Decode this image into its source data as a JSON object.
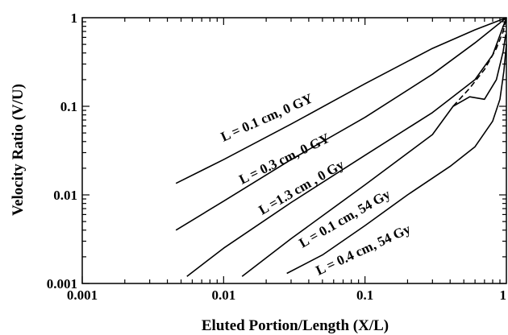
{
  "chart_data": {
    "type": "line",
    "title": "",
    "xlabel": "Eluted Portion/Length (X/L)",
    "ylabel": "Velocity Ratio (V/U)",
    "x_scale": "log",
    "y_scale": "log",
    "xlim": [
      0.001,
      1
    ],
    "ylim": [
      0.001,
      1
    ],
    "x_ticks": [
      {
        "value": 0.001,
        "label": "0.001"
      },
      {
        "value": 0.01,
        "label": "0.01"
      },
      {
        "value": 0.1,
        "label": "0.1"
      },
      {
        "value": 1,
        "label": "1"
      }
    ],
    "y_ticks": [
      {
        "value": 0.001,
        "label": "0.001"
      },
      {
        "value": 0.01,
        "label": "0.01"
      },
      {
        "value": 0.1,
        "label": "0.1"
      },
      {
        "value": 1,
        "label": "1"
      }
    ],
    "grid": false,
    "legend": "none",
    "series": [
      {
        "name": "L = 0.1 cm, 0 GY",
        "style": "solid",
        "x": [
          0.0046,
          0.01,
          0.03,
          0.1,
          0.3,
          0.6,
          1.0
        ],
        "y": [
          0.0135,
          0.025,
          0.063,
          0.18,
          0.45,
          0.73,
          1.0
        ]
      },
      {
        "name": "L = 0.3 cm, 0 GY",
        "style": "solid",
        "x": [
          0.0046,
          0.01,
          0.03,
          0.1,
          0.3,
          0.6,
          1.0
        ],
        "y": [
          0.004,
          0.0085,
          0.025,
          0.075,
          0.23,
          0.52,
          1.0
        ]
      },
      {
        "name": "L =1.3 cm , 0 Gy",
        "style": "solid",
        "x": [
          0.0055,
          0.01,
          0.03,
          0.1,
          0.3,
          0.6,
          0.8,
          1.0
        ],
        "y": [
          0.0012,
          0.0025,
          0.0082,
          0.028,
          0.085,
          0.2,
          0.38,
          1.0
        ]
      },
      {
        "name": "L =1.3 cm , 0 Gy (dashed)",
        "style": "dashed",
        "x": [
          0.42,
          0.55,
          0.7,
          0.85,
          0.95,
          1.0
        ],
        "y": [
          0.1,
          0.16,
          0.26,
          0.45,
          0.7,
          1.0
        ]
      },
      {
        "name": "L = 0.1 cm, 54 Gy",
        "style": "solid",
        "x": [
          0.0135,
          0.03,
          0.1,
          0.3,
          0.42,
          0.55,
          0.7,
          0.85,
          0.95,
          0.99
        ],
        "y": [
          0.0012,
          0.0032,
          0.013,
          0.048,
          0.1,
          0.128,
          0.12,
          0.2,
          0.42,
          0.65
        ]
      },
      {
        "name": "L = 0.4 cm, 54 Gy",
        "style": "solid",
        "x": [
          0.028,
          0.05,
          0.1,
          0.2,
          0.4,
          0.6,
          0.8,
          0.9,
          0.96,
          1.0
        ],
        "y": [
          0.0013,
          0.0021,
          0.0045,
          0.01,
          0.021,
          0.035,
          0.068,
          0.12,
          0.25,
          0.5
        ]
      }
    ],
    "annotations": [
      {
        "text": "L = 0.1 cm, 0 GY"
      },
      {
        "text": "L = 0.3 cm, 0 GY"
      },
      {
        "text": "L =1.3 cm , 0 Gy"
      },
      {
        "text": "L = 0.1 cm, 54 Gy"
      },
      {
        "text": "L = 0.4 cm, 54 Gy"
      }
    ]
  }
}
